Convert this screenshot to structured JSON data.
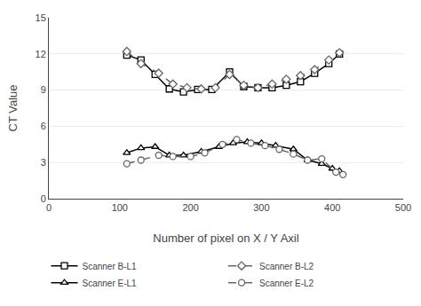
{
  "chart_data": {
    "type": "line",
    "xlabel": "Number of pixel on X / Y Axil",
    "ylabel": "CT Value",
    "xlim": [
      0,
      500
    ],
    "ylim": [
      0,
      15
    ],
    "xticks": [
      0,
      100,
      200,
      300,
      400,
      500
    ],
    "yticks": [
      0,
      3,
      6,
      9,
      12,
      15
    ],
    "grid": "y",
    "legend": "bottom",
    "series": [
      {
        "name": "Scanner B-L1",
        "color": "#000000",
        "marker": "square",
        "line_style": "solid",
        "x": [
          110,
          130,
          150,
          170,
          190,
          210,
          230,
          255,
          275,
          295,
          315,
          335,
          355,
          375,
          395,
          410
        ],
        "values": [
          11.9,
          11.5,
          10.3,
          9.1,
          8.85,
          9.05,
          9.05,
          10.5,
          9.3,
          9.2,
          9.2,
          9.4,
          9.7,
          10.4,
          11.2,
          12.0
        ]
      },
      {
        "name": "Scanner B-L2",
        "color": "#666666",
        "marker": "diamond",
        "line_style": "dashed",
        "x": [
          110,
          130,
          155,
          175,
          195,
          215,
          235,
          255,
          275,
          295,
          315,
          335,
          355,
          375,
          395,
          410
        ],
        "values": [
          12.2,
          11.2,
          10.4,
          9.5,
          9.2,
          9.1,
          9.2,
          10.3,
          9.4,
          9.2,
          9.5,
          9.9,
          10.2,
          10.7,
          11.5,
          12.1
        ]
      },
      {
        "name": "Scanner E-L1",
        "color": "#000000",
        "marker": "triangle-up",
        "line_style": "solid",
        "x": [
          110,
          130,
          150,
          170,
          190,
          215,
          240,
          260,
          280,
          300,
          320,
          345,
          365,
          385,
          400,
          410
        ],
        "values": [
          3.8,
          4.2,
          4.3,
          3.6,
          3.6,
          3.9,
          4.3,
          4.6,
          4.7,
          4.6,
          4.4,
          4.1,
          3.2,
          2.9,
          2.5,
          2.3
        ]
      },
      {
        "name": "Scanner E-L2",
        "color": "#666666",
        "marker": "circle",
        "line_style": "dashed",
        "x": [
          110,
          130,
          155,
          175,
          200,
          220,
          245,
          265,
          285,
          305,
          325,
          345,
          365,
          385,
          405,
          415
        ],
        "values": [
          2.9,
          3.2,
          3.6,
          3.5,
          3.5,
          3.8,
          4.5,
          4.9,
          4.6,
          4.4,
          4.1,
          3.7,
          3.2,
          3.3,
          2.2,
          2.0
        ]
      }
    ]
  }
}
